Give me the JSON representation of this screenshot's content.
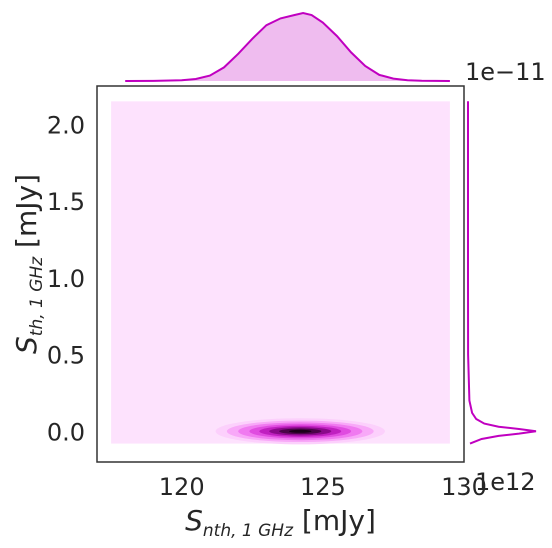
{
  "chart_data": {
    "type": "jointplot-kde",
    "xlabel": {
      "symbol": "S",
      "subscript": "nth, 1 GHz",
      "unit": " [mJy]"
    },
    "ylabel": {
      "symbol": "S",
      "subscript": "th, 1 GHz",
      "unit": " [mJy]"
    },
    "xlim": [
      117,
      130
    ],
    "ylim": [
      -2e-12,
      2.25e-11
    ],
    "x_ticks": [
      {
        "value": 120,
        "label": "120"
      },
      {
        "value": 125,
        "label": "125"
      },
      {
        "value": 130,
        "label": "130"
      }
    ],
    "y_ticks": [
      {
        "value": 0.0,
        "label": "0.0"
      },
      {
        "value": 5e-12,
        "label": "0.5"
      },
      {
        "value": 1e-11,
        "label": "1.0"
      },
      {
        "value": 1.5e-11,
        "label": "1.5"
      },
      {
        "value": 2e-11,
        "label": "2.0"
      }
    ],
    "y_offset_text": "1e−11",
    "right_marginal_offset_text": "1e12",
    "kde_region": {
      "x": [
        117.5,
        129.5
      ],
      "y": [
        -8e-13,
        2.15e-11
      ]
    },
    "joint_peak": {
      "x": 124.2,
      "y": 0.0
    },
    "contour_levels": [
      {
        "rx": 3.0,
        "ry": 8.5e-13,
        "color": "#fcd0fc"
      },
      {
        "rx": 2.6,
        "ry": 7e-13,
        "color": "#f8a8f8"
      },
      {
        "rx": 2.2,
        "ry": 5.8e-13,
        "color": "#f07af0"
      },
      {
        "rx": 1.8,
        "ry": 4.6e-13,
        "color": "#e04ce0"
      },
      {
        "rx": 1.45,
        "ry": 3.6e-13,
        "color": "#c020c0"
      },
      {
        "rx": 1.1,
        "ry": 2.7e-13,
        "color": "#8a0a8a"
      },
      {
        "rx": 0.75,
        "ry": 1.8e-13,
        "color": "#4a0448"
      },
      {
        "rx": 0.4,
        "ry": 9e-14,
        "color": "#1a0018"
      }
    ],
    "x_marginal": {
      "x": [
        118,
        119,
        120,
        120.5,
        121,
        121.5,
        122,
        122.5,
        123,
        123.5,
        124,
        124.3,
        124.6,
        125,
        125.5,
        126,
        126.5,
        127,
        127.5,
        128,
        128.5,
        129.5
      ],
      "density": [
        0.0,
        0.001,
        0.01,
        0.03,
        0.08,
        0.2,
        0.4,
        0.62,
        0.82,
        0.92,
        0.97,
        1.0,
        0.97,
        0.86,
        0.66,
        0.42,
        0.22,
        0.09,
        0.035,
        0.012,
        0.004,
        0.0
      ]
    },
    "y_marginal": {
      "y": [
        2.15e-11,
        1e-11,
        5e-12,
        2e-12,
        1.2e-12,
        8e-13,
        5e-13,
        3e-13,
        1.5e-13,
        0.0,
        -1.5e-13,
        -3e-13,
        -5e-13,
        -8e-13
      ],
      "density": [
        0.0,
        0.0,
        0.002,
        0.02,
        0.06,
        0.12,
        0.24,
        0.45,
        0.75,
        1.0,
        0.75,
        0.45,
        0.2,
        0.03
      ]
    },
    "colors": {
      "fill_light": "#fde2fd",
      "marginal_line": "#c000c0",
      "marginal_fill": "#efbcef",
      "axes": "#333333"
    },
    "grid": false
  }
}
